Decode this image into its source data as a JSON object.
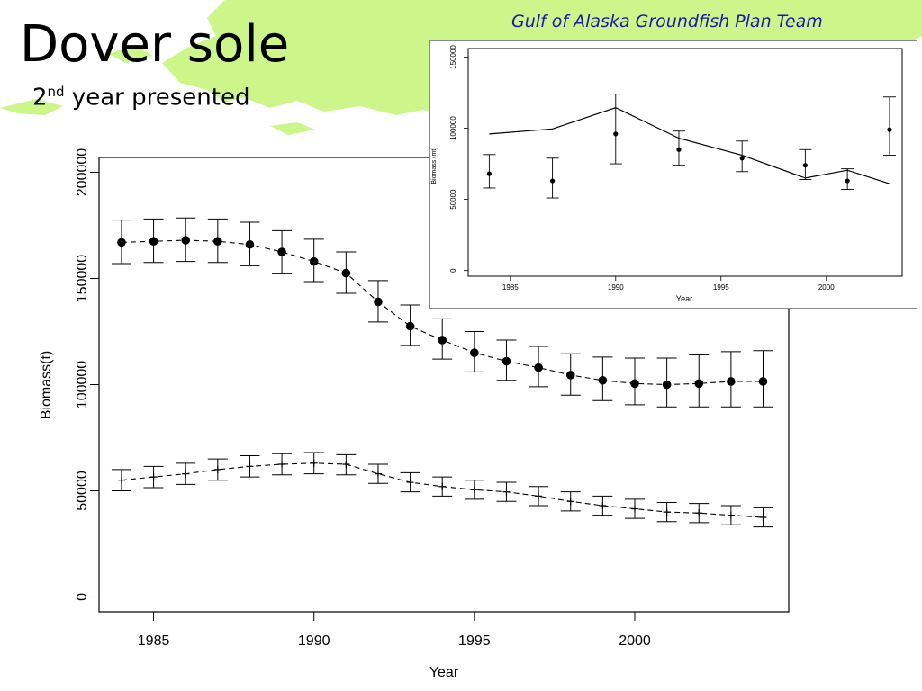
{
  "header": {
    "title": "Dover sole",
    "subtitle_ord_num": "2",
    "subtitle_ord_sup": "nd",
    "subtitle_rest": " year presented",
    "team": "Gulf of Alaska Groundfish Plan Team"
  },
  "colors": {
    "background_land": "#ccf58a",
    "team_text": "#1a1aa8",
    "ink": "#000000"
  },
  "chart_data": [
    {
      "type": "line",
      "xlabel": "Year",
      "ylabel": "Biomass(t)",
      "xlim": [
        1983.3,
        2004.8
      ],
      "ylim": [
        -7000,
        207000
      ],
      "xticks": [
        1985,
        1990,
        1995,
        2000
      ],
      "yticks": [
        0,
        50000,
        100000,
        150000,
        200000
      ],
      "grid": false,
      "series": [
        {
          "marker": "filled-circle",
          "line": "dashed",
          "x": [
            1984,
            1985,
            1986,
            1987,
            1988,
            1989,
            1990,
            1991,
            1992,
            1993,
            1994,
            1995,
            1996,
            1997,
            1998,
            1999,
            2000,
            2001,
            2002,
            2003,
            2004
          ],
          "values": [
            167000,
            167500,
            168000,
            167500,
            166000,
            162500,
            158000,
            152500,
            139000,
            127500,
            121000,
            115000,
            111000,
            108000,
            104500,
            102000,
            100500,
            100000,
            100500,
            101500,
            101500
          ],
          "lower": [
            157000,
            157500,
            158000,
            157500,
            156000,
            152500,
            148500,
            143000,
            129500,
            118500,
            112000,
            106000,
            102000,
            99000,
            95000,
            92500,
            90500,
            89500,
            89500,
            89500,
            89500
          ],
          "upper": [
            177500,
            178000,
            178500,
            178000,
            176500,
            172500,
            168500,
            162500,
            149000,
            137500,
            131000,
            125000,
            121000,
            118000,
            114500,
            113000,
            112500,
            112500,
            114000,
            115500,
            116000
          ]
        },
        {
          "marker": "plus",
          "line": "dashed",
          "x": [
            1984,
            1985,
            1986,
            1987,
            1988,
            1989,
            1990,
            1991,
            1992,
            1993,
            1994,
            1995,
            1996,
            1997,
            1998,
            1999,
            2000,
            2001,
            2002,
            2003,
            2004
          ],
          "values": [
            55000,
            56500,
            58000,
            60000,
            61500,
            62500,
            63000,
            62500,
            58000,
            54000,
            52000,
            50500,
            49500,
            47500,
            45000,
            43000,
            41500,
            40000,
            39500,
            38500,
            37500
          ],
          "lower": [
            50000,
            51500,
            53000,
            55000,
            56500,
            57500,
            58000,
            57500,
            53500,
            49500,
            47500,
            46000,
            45000,
            43000,
            40500,
            38500,
            37000,
            35500,
            35000,
            34000,
            33000
          ],
          "upper": [
            60000,
            61500,
            63000,
            65000,
            66500,
            67500,
            68000,
            67000,
            62500,
            58500,
            56500,
            55000,
            54000,
            52000,
            49500,
            47500,
            46000,
            44500,
            44000,
            43000,
            42000
          ]
        }
      ]
    },
    {
      "type": "line",
      "xlabel": "Year",
      "ylabel": "Biomass (mt)",
      "xlim": [
        1983,
        2003.6
      ],
      "ylim": [
        -4000,
        156000
      ],
      "xticks": [
        1985,
        1990,
        1995,
        2000
      ],
      "yticks": [
        0,
        50000,
        100000,
        150000
      ],
      "grid": false,
      "line_series": {
        "x": [
          1984,
          1987,
          1990,
          1993,
          1996,
          1999,
          2001,
          2003
        ],
        "values": [
          96000,
          99500,
          114500,
          93000,
          81000,
          65000,
          70500,
          61000
        ]
      },
      "point_series": {
        "marker": "filled-circle",
        "x": [
          1984,
          1987,
          1990,
          1993,
          1996,
          1999,
          2001,
          2003
        ],
        "values": [
          68000,
          63000,
          96000,
          85000,
          79000,
          74000,
          63000,
          99000
        ],
        "lower": [
          58000,
          51000,
          75000,
          74000,
          69500,
          64000,
          57000,
          81000
        ],
        "upper": [
          81500,
          79000,
          124000,
          98000,
          91000,
          85000,
          71500,
          122000
        ]
      }
    }
  ]
}
